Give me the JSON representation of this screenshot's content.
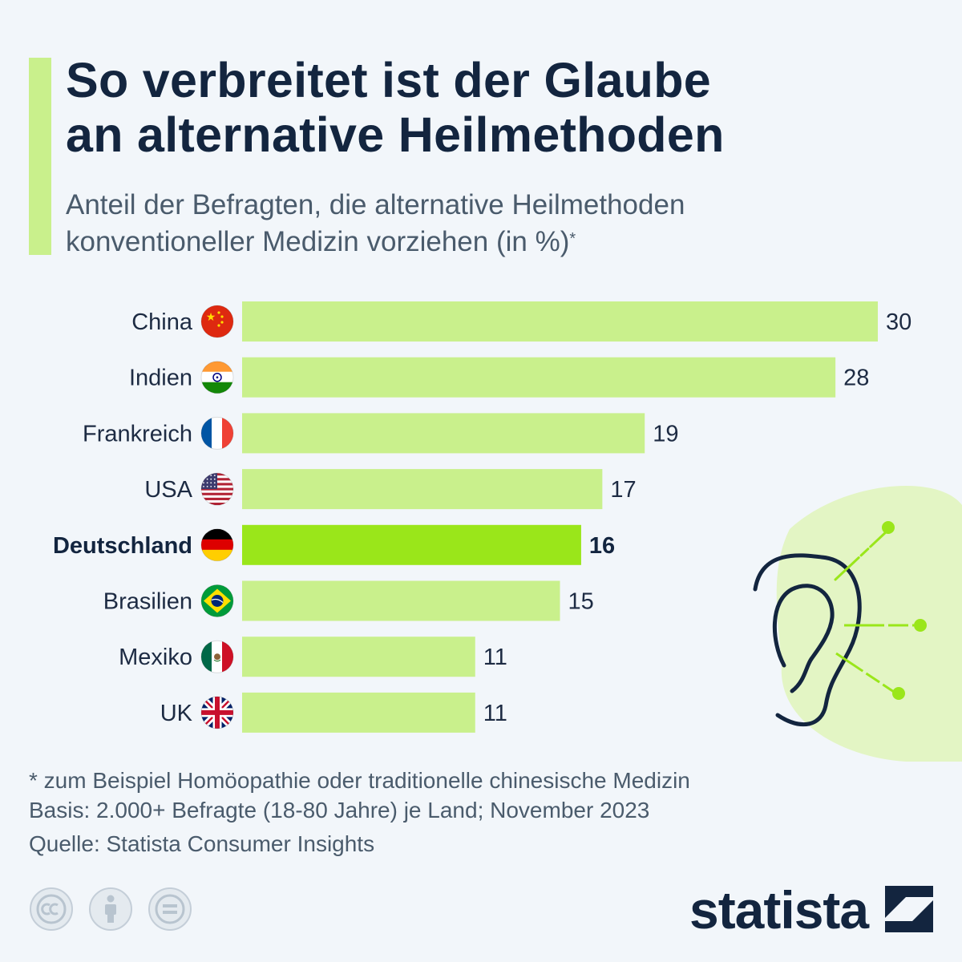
{
  "header": {
    "title_line1": "So verbreitet ist der Glaube",
    "title_line2": "an alternative Heilmethoden",
    "subtitle_line1": "Anteil der Befragten, die alternative Heilmethoden",
    "subtitle_line2": "konventioneller Medizin vorziehen (in %)",
    "subtitle_marker": "*"
  },
  "chart_data": {
    "type": "bar",
    "orientation": "horizontal",
    "categories": [
      "China",
      "Indien",
      "Frankreich",
      "USA",
      "Deutschland",
      "Brasilien",
      "Mexiko",
      "UK"
    ],
    "values": [
      30,
      28,
      19,
      17,
      16,
      15,
      11,
      11
    ],
    "highlight": "Deutschland",
    "flags": [
      "china-flag-icon",
      "india-flag-icon",
      "france-flag-icon",
      "usa-flag-icon",
      "germany-flag-icon",
      "brazil-flag-icon",
      "mexico-flag-icon",
      "uk-flag-icon"
    ],
    "xlim": [
      0,
      30
    ],
    "grid": false,
    "colors": {
      "bar": "#c9f08c",
      "highlight": "#9ae61a"
    }
  },
  "footnotes": {
    "note": "* zum Beispiel Homöopathie oder traditionelle chinesische Medizin",
    "basis": "Basis: 2.000+ Befragte (18-80 Jahre) je Land; November 2023",
    "source": "Quelle: Statista Consumer Insights"
  },
  "license_icons": [
    "cc-icon",
    "attribution-icon",
    "no-derivatives-icon"
  ],
  "decoration": {
    "illustration": "ear-acupuncture-icon"
  },
  "brand": {
    "name": "statista",
    "icon": "statista-logo-icon"
  },
  "colors": {
    "accent": "#c9f08c",
    "highlight": "#9ae61a",
    "text": "#13253f",
    "background": "#f2f6fa"
  }
}
